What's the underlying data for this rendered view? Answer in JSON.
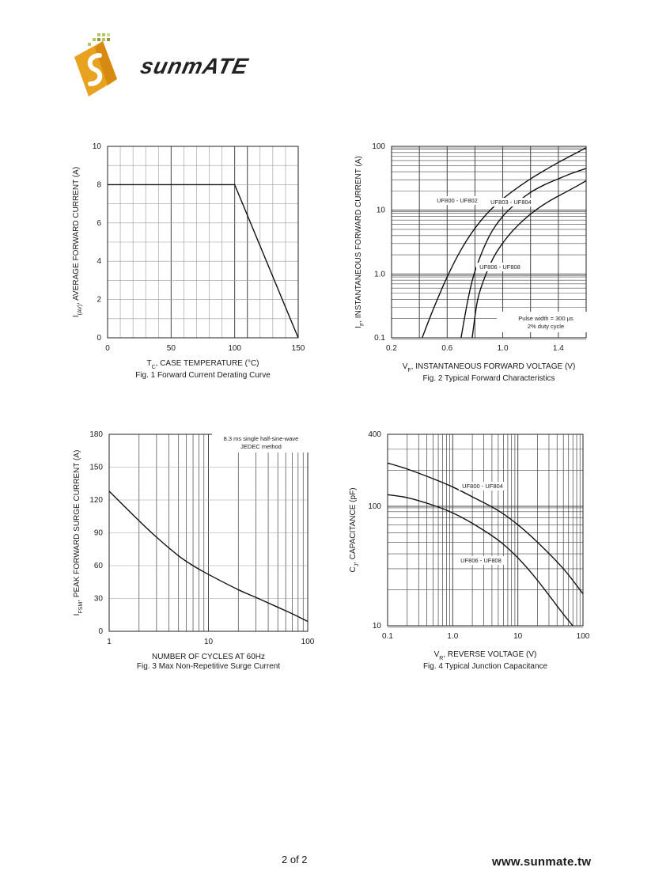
{
  "header": {
    "brand": "sunmATE",
    "logo_icon": "sunmate-logo-icon"
  },
  "footer": {
    "page": "2 of 2",
    "url": "www.sunmate.tw"
  },
  "chart_data": [
    {
      "id": "fig1",
      "type": "line",
      "caption": "Fig. 1  Forward Current Derating Curve",
      "xlabel": {
        "main": "T",
        "sub": "C",
        "rest": ", CASE TEMPERATURE (°C)"
      },
      "ylabel": {
        "main": "I",
        "sub": "(AV)",
        "rest": ", AVERAGE FORWARD CURRENT (A)"
      },
      "xlim": [
        0,
        150
      ],
      "ylim": [
        0,
        10
      ],
      "xticks": [
        0,
        50,
        100,
        150
      ],
      "yticks": [
        0,
        2,
        4,
        6,
        8,
        10
      ],
      "series": [
        {
          "x": [
            0,
            100,
            150
          ],
          "y": [
            8,
            8,
            0
          ]
        }
      ]
    },
    {
      "id": "fig2",
      "type": "line",
      "caption": "Fig. 2  Typical Forward Characteristics",
      "xlabel": {
        "main": "V",
        "sub": "F",
        "rest": ", INSTANTANEOUS FORWARD VOLTAGE (V)"
      },
      "ylabel": {
        "main": "I",
        "sub": "F",
        "rest": ", INSTANTANEOUS FORWARD CURRENT (A)"
      },
      "xlim": [
        0.2,
        1.6
      ],
      "ylim": [
        0.1,
        100
      ],
      "yscale": "log",
      "xticks": [
        "0.2",
        "0.6",
        "1.0",
        "1.4"
      ],
      "yticks": [
        "0.1",
        "1.0",
        "10",
        "100"
      ],
      "annotation": [
        "Pulse width = 300 μs",
        "2% duty cycle"
      ],
      "series": [
        {
          "name": "UF800 - UF802",
          "x": [
            0.42,
            0.5,
            0.6,
            0.7,
            0.8,
            0.9,
            1.0,
            1.1,
            1.2,
            1.3,
            1.4,
            1.5,
            1.6
          ],
          "y": [
            0.1,
            0.28,
            0.9,
            2.4,
            5.2,
            9.5,
            15,
            22,
            31,
            42,
            56,
            73,
            95
          ]
        },
        {
          "name": "UF803 - UF804",
          "x": [
            0.7,
            0.75,
            0.8,
            0.9,
            1.0,
            1.1,
            1.2,
            1.3,
            1.4,
            1.5,
            1.6
          ],
          "y": [
            0.1,
            0.4,
            1.1,
            3.8,
            8,
            13,
            19,
            25,
            31,
            38,
            45
          ]
        },
        {
          "name": "UF806 - UF808",
          "x": [
            0.78,
            0.82,
            0.88,
            0.95,
            1.05,
            1.15,
            1.25,
            1.35,
            1.45,
            1.55,
            1.6
          ],
          "y": [
            0.1,
            0.4,
            1.0,
            2.1,
            4.2,
            7,
            10.5,
            14.5,
            19,
            25,
            29
          ]
        }
      ],
      "series_label_ids": [
        "uf800",
        "uf803",
        "uf806"
      ]
    },
    {
      "id": "fig3",
      "type": "line",
      "caption": "Fig. 3  Max Non-Repetitive Surge Current",
      "xlabel": {
        "main": "NUMBER OF CYCLES AT 60Hz",
        "sub": "",
        "rest": ""
      },
      "ylabel": {
        "main": "I",
        "sub": "FSM",
        "rest": ", PEAK FORWARD SURGE CURRENT (A)"
      },
      "xlim": [
        1,
        100
      ],
      "ylim": [
        0,
        180
      ],
      "xscale": "log",
      "xticks": [
        "1",
        "10",
        "100"
      ],
      "yticks": [
        0,
        30,
        60,
        90,
        120,
        150,
        180
      ],
      "annotation": [
        "8.3 ms single half-sine-wave",
        "JEDEC method"
      ],
      "series": [
        {
          "x": [
            1,
            2,
            3,
            5,
            7,
            10,
            20,
            30,
            50,
            70,
            100
          ],
          "y": [
            128,
            101,
            86,
            69,
            60,
            52,
            38,
            31,
            22,
            16,
            9
          ]
        }
      ]
    },
    {
      "id": "fig4",
      "type": "line",
      "caption": "Fig. 4  Typical Junction Capacitance",
      "xlabel": {
        "main": "V",
        "sub": "R",
        "rest": ", REVERSE VOLTAGE (V)"
      },
      "ylabel": {
        "main": "C",
        "sub": "J",
        "rest": ", CAPACITANCE (pF)"
      },
      "xlim": [
        0.1,
        100
      ],
      "ylim": [
        10,
        400
      ],
      "xscale": "log",
      "yscale": "log",
      "xticks": [
        "0.1",
        "1.0",
        "10",
        "100"
      ],
      "yticks": [
        "10",
        "100",
        "400"
      ],
      "series": [
        {
          "name": "UF800 - UF804",
          "x": [
            0.1,
            0.2,
            0.5,
            1,
            2,
            5,
            10,
            20,
            50,
            100
          ],
          "y": [
            230,
            205,
            170,
            145,
            120,
            92,
            70,
            50,
            30,
            18.5
          ]
        },
        {
          "name": "UF806 - UF808",
          "x": [
            0.1,
            0.2,
            0.5,
            1,
            2,
            5,
            10,
            20,
            50,
            70
          ],
          "y": [
            125,
            118,
            102,
            88,
            72,
            52,
            37,
            24,
            12.5,
            10
          ]
        }
      ],
      "series_label_ids": [
        "uf800",
        "uf806"
      ]
    }
  ]
}
